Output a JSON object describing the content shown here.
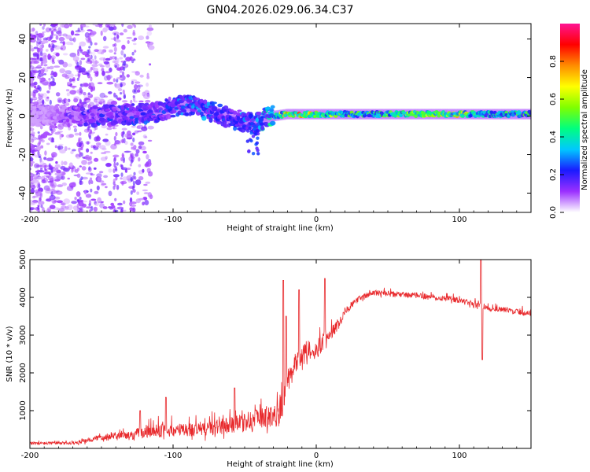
{
  "title": "GN04.2026.029.06.34.C37",
  "colors": {
    "snr_line": "#e8292c",
    "axis": "#000000",
    "colorbar_stops": [
      "#ffffff",
      "#9b30ff",
      "#1a1aff",
      "#00c8ff",
      "#00ff7f",
      "#7fff00",
      "#ffff00",
      "#ff8c00",
      "#ff0000",
      "#ff1493"
    ]
  },
  "chart_data": [
    {
      "type": "heatmap",
      "name": "spectrogram",
      "xlabel": "Height of straight line (km)",
      "ylabel": "Frequency (Hz)",
      "xlim": [
        -200,
        150
      ],
      "ylim": [
        -50,
        48
      ],
      "xticks": [
        -200,
        -100,
        0,
        100
      ],
      "yticks": [
        -40,
        -20,
        0,
        20,
        40
      ],
      "xtick_labels": [
        "-200",
        "-100",
        "0",
        "100"
      ],
      "ytick_labels": [
        "-40",
        "-20",
        "0",
        "20",
        "40"
      ],
      "colorbar": {
        "label": "Normalized spectral amplitude",
        "range": [
          0,
          1
        ],
        "ticks": [
          0,
          0.2,
          0.4,
          0.6,
          0.8
        ],
        "tick_labels": [
          "0.0",
          "0.2",
          "0.4",
          "0.6",
          "0.8"
        ]
      },
      "ridge": {
        "description_points_x": [
          -200,
          -160,
          -130,
          -110,
          -95,
          -85,
          -75,
          -65,
          -55,
          -45,
          -40,
          -35,
          -30,
          -20,
          -10,
          0,
          20,
          50,
          80,
          100,
          120,
          150
        ],
        "description_points_y": [
          0,
          0,
          1,
          2,
          6,
          5,
          3,
          0,
          -2,
          -4,
          -3,
          -1,
          0,
          1,
          1,
          1,
          1,
          1,
          1,
          1,
          1,
          1
        ],
        "amplitude": [
          0.05,
          0.2,
          0.25,
          0.25,
          0.3,
          0.3,
          0.3,
          0.3,
          0.3,
          0.3,
          0.35,
          0.4,
          0.5,
          0.75,
          0.8,
          0.7,
          0.5,
          0.55,
          0.8,
          0.7,
          0.5,
          0.5
        ]
      }
    },
    {
      "type": "line",
      "name": "snr",
      "xlabel": "Height of straight line (km)",
      "ylabel": "SNR (10 * v/v)",
      "xlim": [
        -200,
        150
      ],
      "ylim": [
        0,
        5000
      ],
      "xticks": [
        -200,
        -100,
        0,
        100
      ],
      "yticks": [
        1000,
        2000,
        3000,
        4000,
        5000
      ],
      "xtick_labels": [
        "-200",
        "-100",
        "0",
        "100"
      ],
      "ytick_labels": [
        "1000",
        "2000",
        "3000",
        "4000",
        "5000"
      ],
      "envelope": {
        "x": [
          -200,
          -170,
          -160,
          -150,
          -140,
          -130,
          -125,
          -120,
          -100,
          -80,
          -60,
          -50,
          -40,
          -35,
          -30,
          -25,
          -20,
          -15,
          -10,
          -5,
          0,
          5,
          10,
          15,
          20,
          30,
          40,
          60,
          80,
          100,
          110,
          120,
          130,
          150
        ],
        "base": [
          120,
          130,
          180,
          280,
          320,
          300,
          350,
          400,
          420,
          450,
          550,
          600,
          700,
          750,
          780,
          800,
          1800,
          2200,
          2400,
          2600,
          2500,
          2800,
          3000,
          3200,
          3600,
          3950,
          4100,
          4050,
          4000,
          3900,
          3800,
          3700,
          3650,
          3550
        ],
        "noise": [
          80,
          80,
          120,
          180,
          200,
          200,
          300,
          350,
          350,
          400,
          450,
          500,
          550,
          600,
          600,
          650,
          700,
          600,
          500,
          500,
          500,
          500,
          400,
          300,
          200,
          150,
          150,
          150,
          150,
          150,
          150,
          150,
          150,
          150
        ]
      },
      "spikes": [
        {
          "x": -23,
          "y": 4450
        },
        {
          "x": -21,
          "y": 3500
        },
        {
          "x": -12,
          "y": 4200
        },
        {
          "x": 6,
          "y": 4500
        },
        {
          "x": 115,
          "y": 5000
        },
        {
          "x": 116,
          "y": 2350
        },
        {
          "x": -123,
          "y": 1000
        },
        {
          "x": -105,
          "y": 1350
        },
        {
          "x": -57,
          "y": 1600
        }
      ]
    }
  ]
}
